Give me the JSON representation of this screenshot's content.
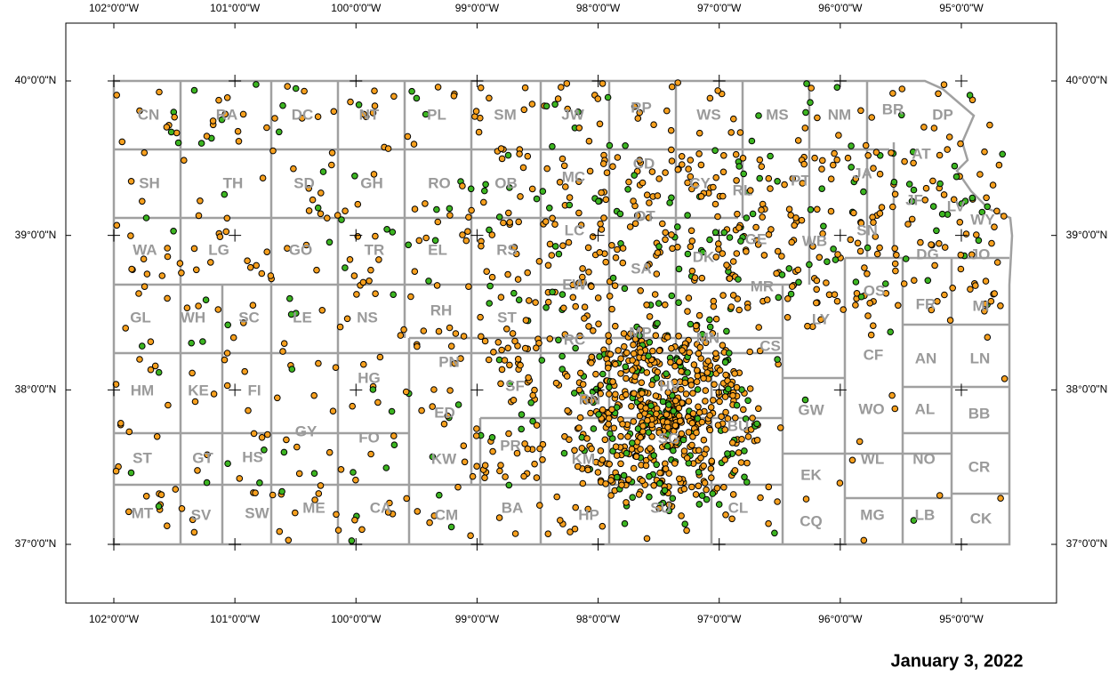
{
  "map": {
    "lon_ticks": [
      {
        "value": -102,
        "label": "102°0'0\"W"
      },
      {
        "value": -101,
        "label": "101°0'0\"W"
      },
      {
        "value": -100,
        "label": "100°0'0\"W"
      },
      {
        "value": -99,
        "label": "99°0'0\"W"
      },
      {
        "value": -98,
        "label": "98°0'0\"W"
      },
      {
        "value": -97,
        "label": "97°0'0\"W"
      },
      {
        "value": -96,
        "label": "96°0'0\"W"
      },
      {
        "value": -95,
        "label": "95°0'0\"W"
      }
    ],
    "lat_ticks": [
      {
        "value": 40,
        "label": "40°0'0\"N"
      },
      {
        "value": 39,
        "label": "39°0'0\"N"
      },
      {
        "value": 38,
        "label": "38°0'0\"N"
      },
      {
        "value": 37,
        "label": "37°0'0\"N"
      }
    ],
    "counties": [
      "CN",
      "RA",
      "DC",
      "NT",
      "PL",
      "SM",
      "JW",
      "RP",
      "WS",
      "MS",
      "NM",
      "BR",
      "DP",
      "SH",
      "TH",
      "SD",
      "GH",
      "RO",
      "OB",
      "MC",
      "CD",
      "CY",
      "RL",
      "PT",
      "JA",
      "AT",
      "JF",
      "LV",
      "WY",
      "WA",
      "LG",
      "GO",
      "TR",
      "EL",
      "RS",
      "LC",
      "EW",
      "OT",
      "SA",
      "DK",
      "GE",
      "WB",
      "SN",
      "DG",
      "JO",
      "MR",
      "OS",
      "FR",
      "MI",
      "GL",
      "WH",
      "SC",
      "LE",
      "NS",
      "RH",
      "ST",
      "RC",
      "MP",
      "MN",
      "CS",
      "LY",
      "CF",
      "AN",
      "LN",
      "HM",
      "KE",
      "FI",
      "HG",
      "PN",
      "ED",
      "SF",
      "RN",
      "HV",
      "BU",
      "GW",
      "WO",
      "AL",
      "BB",
      "ST",
      "GT",
      "HS",
      "GY",
      "FO",
      "KW",
      "PR",
      "KM",
      "SG",
      "WL",
      "NO",
      "EK",
      "CR",
      "MT",
      "SV",
      "SW",
      "ME",
      "CA",
      "CM",
      "BA",
      "HP",
      "SU",
      "CL",
      "CQ",
      "MG",
      "LB",
      "CK"
    ],
    "date": "January 3, 2022"
  }
}
